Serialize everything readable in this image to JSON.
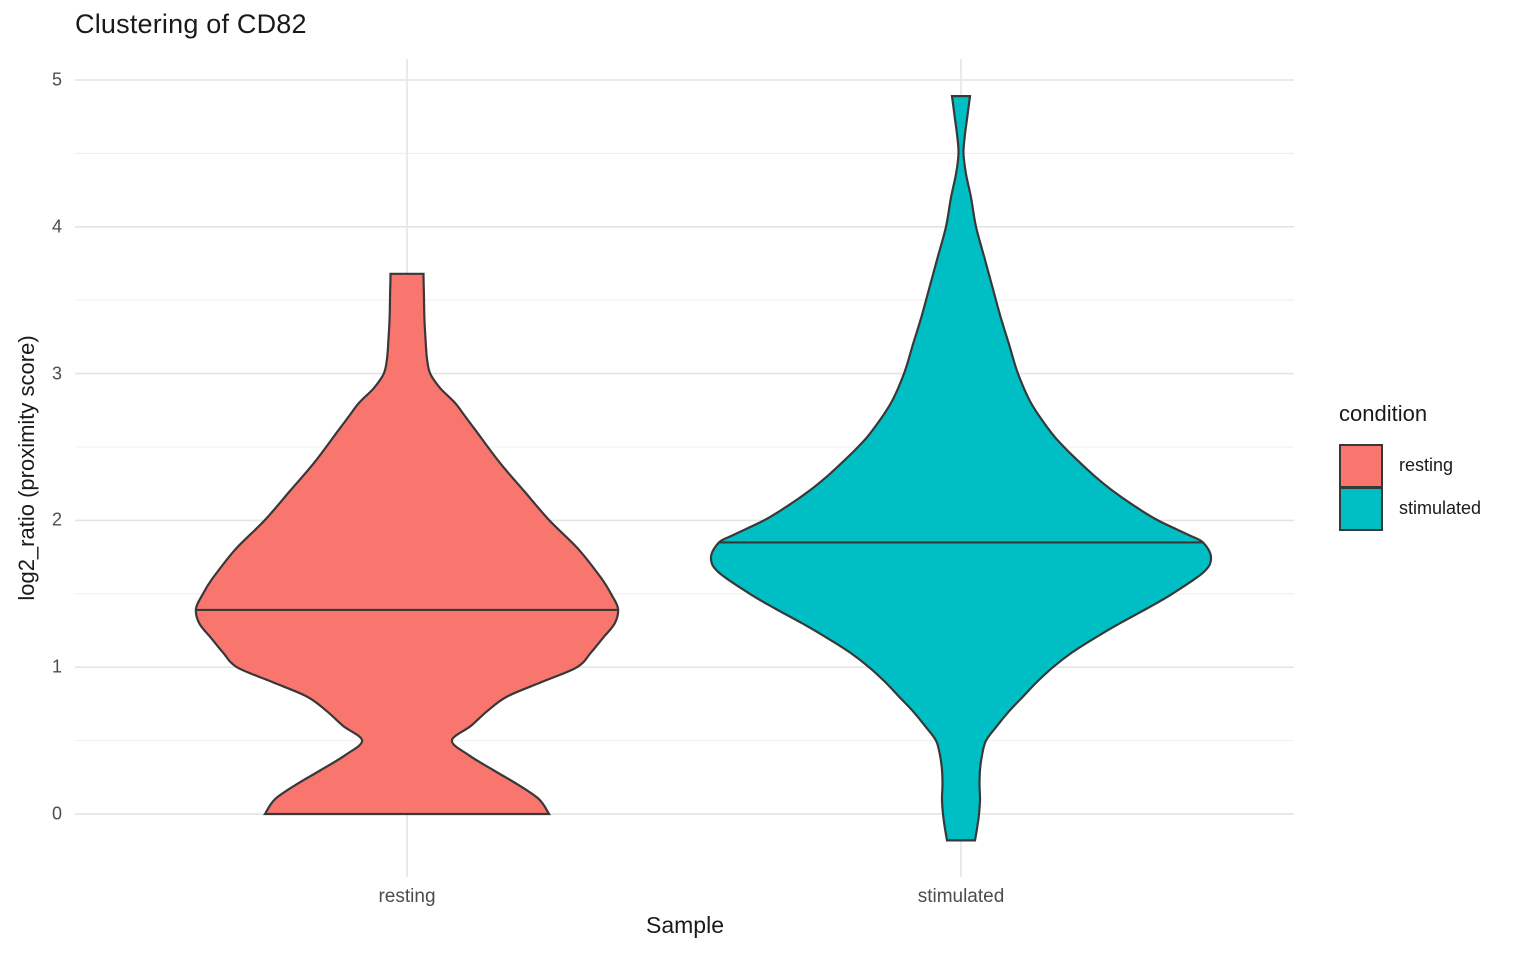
{
  "title": "Clustering of CD82",
  "axes": {
    "x_title": "Sample",
    "y_title": "log2_ratio (proximity score)"
  },
  "legend": {
    "title": "condition",
    "items": [
      {
        "label": "resting",
        "color": "#F8766D"
      },
      {
        "label": "stimulated",
        "color": "#00BFC4"
      }
    ]
  },
  "chart_data": {
    "type": "violin",
    "title": "Clustering of CD82",
    "xlabel": "Sample",
    "ylabel": "log2_ratio (proximity score)",
    "categories": [
      "resting",
      "stimulated"
    ],
    "yticks": [
      0,
      1,
      2,
      3,
      4,
      5
    ],
    "ylim": [
      -0.429,
      5.143
    ],
    "grid": "major+minor",
    "legend_position": "right",
    "colors": {
      "outline": "#383838",
      "grid_major": "#e4e4e4",
      "grid_minor": "#efefef"
    },
    "series": [
      {
        "name": "resting",
        "color": "#F8766D",
        "median": 1.39,
        "median_width": 1.0,
        "range": [
          0.0,
          3.68
        ],
        "profile": [
          [
            3.68,
            0.078
          ],
          [
            3.55,
            0.08
          ],
          [
            3.4,
            0.082
          ],
          [
            3.25,
            0.087
          ],
          [
            3.1,
            0.095
          ],
          [
            3.0,
            0.11
          ],
          [
            2.9,
            0.158
          ],
          [
            2.8,
            0.228
          ],
          [
            2.7,
            0.28
          ],
          [
            2.6,
            0.332
          ],
          [
            2.4,
            0.436
          ],
          [
            2.2,
            0.555
          ],
          [
            2.0,
            0.675
          ],
          [
            1.8,
            0.815
          ],
          [
            1.6,
            0.924
          ],
          [
            1.5,
            0.967
          ],
          [
            1.4,
            1.0
          ],
          [
            1.3,
            0.985
          ],
          [
            1.2,
            0.929
          ],
          [
            1.1,
            0.872
          ],
          [
            1.0,
            0.806
          ],
          [
            0.9,
            0.64
          ],
          [
            0.8,
            0.474
          ],
          [
            0.7,
            0.379
          ],
          [
            0.6,
            0.303
          ],
          [
            0.5,
            0.213
          ],
          [
            0.4,
            0.294
          ],
          [
            0.3,
            0.408
          ],
          [
            0.2,
            0.526
          ],
          [
            0.1,
            0.626
          ],
          [
            0.0,
            0.673
          ]
        ]
      },
      {
        "name": "stimulated",
        "color": "#00BFC4",
        "median": 1.85,
        "median_width": 0.97,
        "range": [
          -0.18,
          4.89
        ],
        "profile": [
          [
            4.89,
            0.036
          ],
          [
            4.76,
            0.026
          ],
          [
            4.63,
            0.016
          ],
          [
            4.5,
            0.01
          ],
          [
            4.36,
            0.02
          ],
          [
            4.2,
            0.04
          ],
          [
            4.0,
            0.06
          ],
          [
            3.8,
            0.092
          ],
          [
            3.6,
            0.124
          ],
          [
            3.4,
            0.156
          ],
          [
            3.2,
            0.192
          ],
          [
            3.0,
            0.228
          ],
          [
            2.8,
            0.28
          ],
          [
            2.6,
            0.36
          ],
          [
            2.5,
            0.412
          ],
          [
            2.4,
            0.472
          ],
          [
            2.3,
            0.536
          ],
          [
            2.2,
            0.608
          ],
          [
            2.1,
            0.692
          ],
          [
            2.0,
            0.788
          ],
          [
            1.9,
            0.912
          ],
          [
            1.85,
            0.968
          ],
          [
            1.75,
            1.0
          ],
          [
            1.65,
            0.972
          ],
          [
            1.5,
            0.845
          ],
          [
            1.4,
            0.744
          ],
          [
            1.3,
            0.636
          ],
          [
            1.2,
            0.536
          ],
          [
            1.1,
            0.444
          ],
          [
            1.0,
            0.368
          ],
          [
            0.9,
            0.304
          ],
          [
            0.8,
            0.248
          ],
          [
            0.7,
            0.192
          ],
          [
            0.6,
            0.144
          ],
          [
            0.5,
            0.1
          ],
          [
            0.4,
            0.084
          ],
          [
            0.3,
            0.076
          ],
          [
            0.2,
            0.074
          ],
          [
            0.1,
            0.076
          ],
          [
            0.0,
            0.072
          ],
          [
            -0.1,
            0.064
          ],
          [
            -0.18,
            0.056
          ]
        ]
      }
    ]
  }
}
